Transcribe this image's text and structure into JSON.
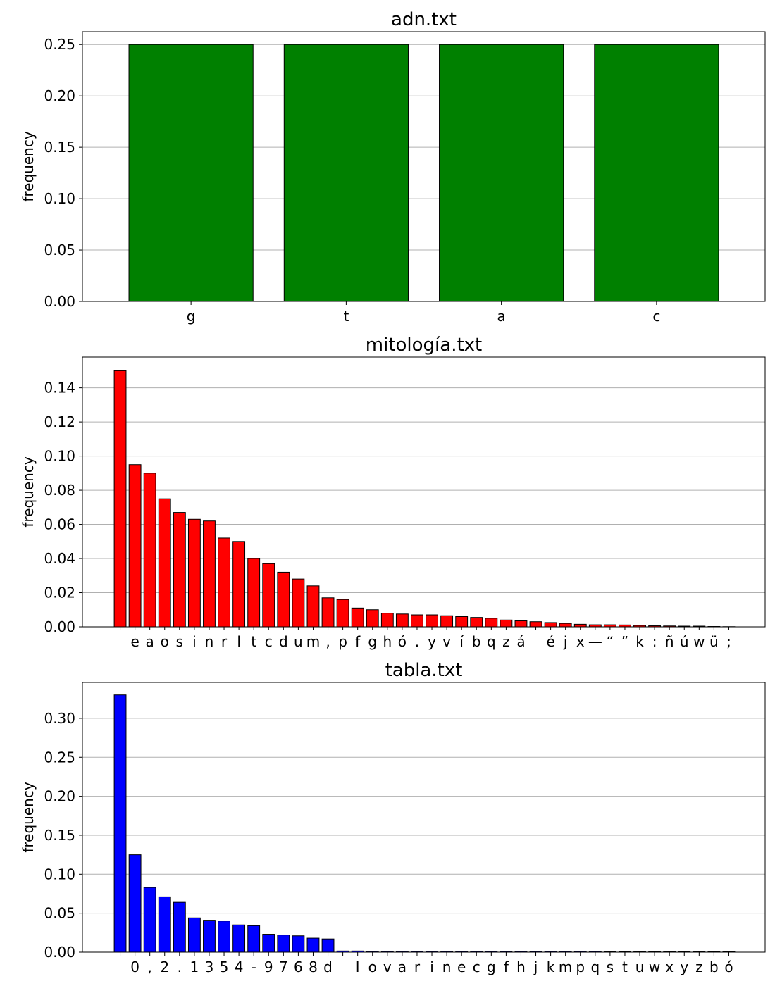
{
  "chart_data": [
    {
      "type": "bar",
      "title": "adn.txt",
      "xlabel": "",
      "ylabel": "frequency",
      "ylim": [
        0,
        0.2625
      ],
      "yticks": [
        0.0,
        0.05,
        0.1,
        0.15,
        0.2,
        0.25
      ],
      "ytick_labels": [
        "0.00",
        "0.05",
        "0.10",
        "0.15",
        "0.20",
        "0.25"
      ],
      "grid": "y",
      "color": "#008000",
      "categories": [
        "g",
        "t",
        "a",
        "c"
      ],
      "values": [
        0.25,
        0.25,
        0.25,
        0.25
      ]
    },
    {
      "type": "bar",
      "title": "mitología.txt",
      "xlabel": "",
      "ylabel": "frequency",
      "ylim": [
        0,
        0.158
      ],
      "yticks": [
        0.0,
        0.02,
        0.04,
        0.06,
        0.08,
        0.1,
        0.12,
        0.14
      ],
      "ytick_labels": [
        "0.00",
        "0.02",
        "0.04",
        "0.06",
        "0.08",
        "0.10",
        "0.12",
        "0.14"
      ],
      "grid": "y",
      "color": "#ff0000",
      "categories": [
        " ",
        "e",
        "a",
        "o",
        "s",
        "i",
        "n",
        "r",
        "l",
        "t",
        "c",
        "d",
        "u",
        "m",
        ",",
        "p",
        "f",
        "g",
        "h",
        "ó",
        ".",
        "y",
        "v",
        "í",
        "b",
        "q",
        "z",
        "á",
        " ",
        "é",
        "j",
        "x",
        "—",
        "“",
        "”",
        "k",
        ":",
        "ñ",
        "ú",
        "w",
        "ü",
        ";"
      ],
      "values": [
        0.15,
        0.095,
        0.09,
        0.075,
        0.067,
        0.063,
        0.062,
        0.052,
        0.05,
        0.04,
        0.037,
        0.032,
        0.028,
        0.024,
        0.017,
        0.016,
        0.011,
        0.01,
        0.008,
        0.0075,
        0.007,
        0.007,
        0.0065,
        0.006,
        0.0055,
        0.005,
        0.004,
        0.0035,
        0.003,
        0.0025,
        0.002,
        0.0015,
        0.0012,
        0.0012,
        0.0011,
        0.0008,
        0.0006,
        0.0005,
        0.0004,
        0.0004,
        0.0002,
        0.0001
      ]
    },
    {
      "type": "bar",
      "title": "tabla.txt",
      "xlabel": "",
      "ylabel": "frequency",
      "ylim": [
        0,
        0.346
      ],
      "yticks": [
        0.0,
        0.05,
        0.1,
        0.15,
        0.2,
        0.25,
        0.3
      ],
      "ytick_labels": [
        "0.00",
        "0.05",
        "0.10",
        "0.15",
        "0.20",
        "0.25",
        "0.30"
      ],
      "grid": "y",
      "color": "#0000ff",
      "categories": [
        " ",
        "0",
        ",",
        "2",
        ".",
        "1",
        "3",
        "5",
        "4",
        "-",
        "9",
        "7",
        "6",
        "8",
        "d",
        " ",
        "l",
        "o",
        "v",
        "a",
        "r",
        "i",
        "n",
        "e",
        "c",
        "g",
        "f",
        "h",
        "j",
        "k",
        "m",
        "p",
        "q",
        "s",
        "t",
        "u",
        "w",
        "x",
        "y",
        "z",
        "b",
        "ó"
      ],
      "values": [
        0.33,
        0.125,
        0.083,
        0.071,
        0.064,
        0.044,
        0.041,
        0.04,
        0.035,
        0.034,
        0.023,
        0.022,
        0.021,
        0.018,
        0.017,
        0.0015,
        0.0015,
        0.001,
        0.001,
        0.001,
        0.001,
        0.001,
        0.001,
        0.001,
        0.001,
        0.001,
        0.001,
        0.001,
        0.001,
        0.001,
        0.001,
        0.001,
        0.001,
        0.0008,
        0.0008,
        0.0008,
        0.0008,
        0.0008,
        0.0008,
        0.0008,
        0.0008,
        0.0008
      ]
    }
  ]
}
